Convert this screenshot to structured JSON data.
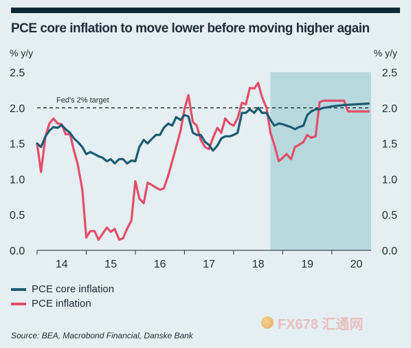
{
  "title": "PCE core inflation to move lower before moving higher again",
  "source": "Source: BEA, Macrobond Financial, Danske Bank",
  "watermark": "FX678 汇通网",
  "colors": {
    "core": "#1c5a73",
    "headline": "#e24e68",
    "forecast_shade": "#b7d9de",
    "background": "#e5eef2"
  },
  "legend": [
    {
      "label": "PCE core inflation",
      "color": "#1c5a73"
    },
    {
      "label": "PCE inflation",
      "color": "#e24e68"
    }
  ],
  "chart_data": {
    "type": "line",
    "ylabel_left": "% y/y",
    "ylabel_right": "% y/y",
    "ylim": [
      0.0,
      2.5
    ],
    "yticks": [
      "0.0",
      "0.5",
      "1.0",
      "1.5",
      "2.0",
      "2.5"
    ],
    "xlim": [
      2014.0,
      2020.8
    ],
    "xticks": [
      "14",
      "15",
      "16",
      "17",
      "18",
      "19",
      "20"
    ],
    "forecast_from": 2018.75,
    "reference_line": {
      "value": 2.0,
      "label": "Fed's 2% target"
    },
    "series": [
      {
        "name": "PCE core inflation",
        "x": [
          2014.0,
          2014.08,
          2014.17,
          2014.25,
          2014.33,
          2014.42,
          2014.5,
          2014.58,
          2014.67,
          2014.75,
          2014.83,
          2014.92,
          2015.0,
          2015.08,
          2015.17,
          2015.25,
          2015.33,
          2015.42,
          2015.5,
          2015.58,
          2015.67,
          2015.75,
          2015.83,
          2015.92,
          2016.0,
          2016.08,
          2016.17,
          2016.25,
          2016.33,
          2016.42,
          2016.5,
          2016.58,
          2016.67,
          2016.75,
          2016.83,
          2016.92,
          2017.0,
          2017.08,
          2017.17,
          2017.25,
          2017.33,
          2017.42,
          2017.5,
          2017.58,
          2017.67,
          2017.75,
          2017.83,
          2017.92,
          2018.0,
          2018.08,
          2018.17,
          2018.25,
          2018.33,
          2018.42,
          2018.5,
          2018.58,
          2018.67,
          2018.75,
          2018.83,
          2018.92,
          2019.0,
          2019.08,
          2019.17,
          2019.25,
          2019.33,
          2019.42,
          2019.5,
          2019.58,
          2019.67,
          2019.75,
          2019.83,
          2019.92,
          2020.0,
          2020.25,
          2020.5,
          2020.75
        ],
        "values": [
          1.5,
          1.45,
          1.6,
          1.68,
          1.73,
          1.72,
          1.76,
          1.7,
          1.65,
          1.57,
          1.52,
          1.45,
          1.35,
          1.38,
          1.35,
          1.32,
          1.3,
          1.25,
          1.28,
          1.22,
          1.28,
          1.28,
          1.22,
          1.26,
          1.25,
          1.45,
          1.55,
          1.5,
          1.56,
          1.62,
          1.62,
          1.72,
          1.78,
          1.75,
          1.87,
          1.83,
          1.9,
          1.88,
          1.65,
          1.62,
          1.62,
          1.52,
          1.48,
          1.4,
          1.47,
          1.57,
          1.6,
          1.6,
          1.62,
          1.65,
          1.93,
          1.93,
          1.98,
          1.93,
          2.0,
          1.93,
          1.93,
          1.83,
          1.75,
          1.78,
          1.77,
          1.75,
          1.73,
          1.7,
          1.73,
          1.75,
          1.9,
          1.95,
          1.98,
          1.98,
          2.0,
          2.01,
          2.02,
          2.04,
          2.05,
          2.06
        ]
      },
      {
        "name": "PCE inflation",
        "x": [
          2014.0,
          2014.08,
          2014.17,
          2014.25,
          2014.33,
          2014.42,
          2014.5,
          2014.58,
          2014.67,
          2014.75,
          2014.83,
          2014.92,
          2015.0,
          2015.08,
          2015.17,
          2015.25,
          2015.33,
          2015.42,
          2015.5,
          2015.58,
          2015.67,
          2015.75,
          2015.83,
          2015.92,
          2016.0,
          2016.08,
          2016.17,
          2016.25,
          2016.33,
          2016.42,
          2016.5,
          2016.58,
          2016.67,
          2016.75,
          2016.83,
          2016.92,
          2017.0,
          2017.08,
          2017.17,
          2017.25,
          2017.33,
          2017.42,
          2017.5,
          2017.58,
          2017.67,
          2017.75,
          2017.83,
          2017.92,
          2018.0,
          2018.08,
          2018.17,
          2018.25,
          2018.33,
          2018.42,
          2018.5,
          2018.58,
          2018.67,
          2018.75,
          2018.83,
          2018.92,
          2019.0,
          2019.08,
          2019.17,
          2019.25,
          2019.33,
          2019.42,
          2019.5,
          2019.58,
          2019.67,
          2019.75,
          2019.83,
          2019.92,
          2020.0,
          2020.25,
          2020.33,
          2020.5,
          2020.75
        ],
        "values": [
          1.5,
          1.1,
          1.6,
          1.78,
          1.85,
          1.78,
          1.77,
          1.63,
          1.63,
          1.4,
          1.2,
          0.85,
          0.18,
          0.27,
          0.27,
          0.15,
          0.23,
          0.32,
          0.26,
          0.3,
          0.15,
          0.17,
          0.3,
          0.42,
          0.97,
          0.73,
          0.66,
          0.95,
          0.92,
          0.88,
          0.85,
          0.87,
          1.05,
          1.25,
          1.45,
          1.68,
          1.98,
          2.18,
          1.8,
          1.75,
          1.55,
          1.45,
          1.42,
          1.58,
          1.72,
          1.65,
          1.85,
          1.78,
          1.75,
          1.85,
          2.07,
          2.05,
          2.28,
          2.27,
          2.35,
          2.15,
          2.0,
          1.65,
          1.48,
          1.25,
          1.3,
          1.35,
          1.28,
          1.45,
          1.48,
          1.52,
          1.62,
          1.58,
          1.6,
          2.08,
          2.1,
          2.1,
          2.1,
          2.1,
          1.95,
          1.95,
          1.95
        ]
      }
    ]
  }
}
